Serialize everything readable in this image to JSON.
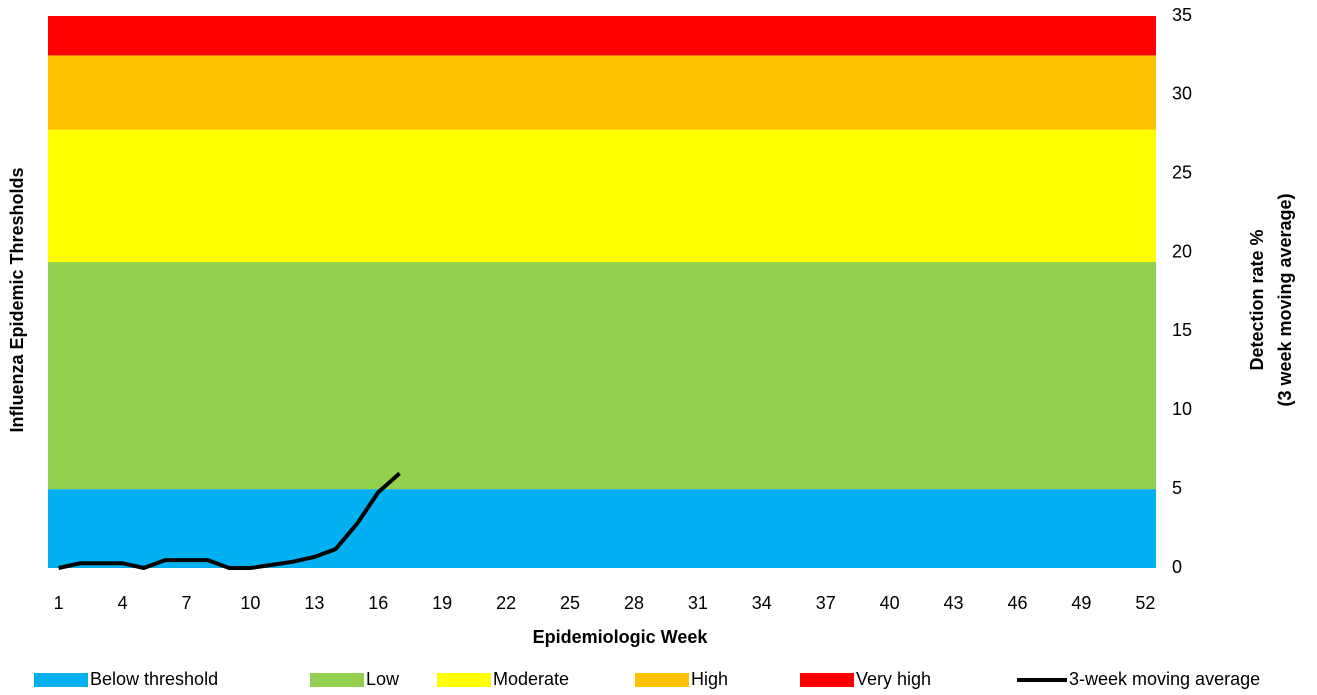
{
  "chart_data": {
    "type": "line",
    "x_label": "Epidemiologic Week",
    "y_label": "Influenza Epidemic Thresholds",
    "y2_label": [
      "Detection rate %",
      "(3 week moving average)"
    ],
    "x": [
      1,
      2,
      3,
      4,
      5,
      6,
      7,
      8,
      9,
      10,
      11,
      12,
      13,
      14,
      15,
      16,
      17,
      18,
      19,
      20,
      21,
      22,
      23,
      24,
      25,
      26,
      27,
      28,
      29,
      30,
      31,
      32,
      33,
      34,
      35,
      36,
      37,
      38,
      39,
      40,
      41,
      42,
      43,
      44,
      45,
      46,
      47,
      48,
      49,
      50,
      51,
      52
    ],
    "xlim": [
      0.5,
      52.5
    ],
    "xticks": [
      1,
      4,
      7,
      10,
      13,
      16,
      19,
      22,
      25,
      28,
      31,
      34,
      37,
      40,
      43,
      46,
      49,
      52
    ],
    "y2lim": [
      0,
      35
    ],
    "y2ticks": [
      0,
      5,
      10,
      15,
      20,
      25,
      30,
      35
    ],
    "bands": [
      {
        "name": "Below threshold",
        "color": "#00b0f0",
        "value": 5
      },
      {
        "name": "Low",
        "color": "#92d050",
        "value": 14.4
      },
      {
        "name": "Moderate",
        "color": "#ffff00",
        "value": 8.4
      },
      {
        "name": "High",
        "color": "#ffc000",
        "value": 4.7
      },
      {
        "name": "Very high",
        "color": "#ff0000",
        "value": 2.5
      }
    ],
    "series": [
      {
        "name": "3-week moving average",
        "color": "#000000",
        "axis": "y2",
        "values": [
          0,
          0.3,
          0.3,
          0.3,
          0,
          0.5,
          0.5,
          0.5,
          0,
          0,
          0.2,
          0.4,
          0.7,
          1.2,
          2.8,
          4.8,
          6.0,
          null,
          null,
          null,
          null,
          null,
          null,
          null,
          null,
          null,
          null,
          null,
          null,
          null,
          null,
          null,
          null,
          null,
          null,
          null,
          null,
          null,
          null,
          null,
          null,
          null,
          null,
          null,
          null,
          null,
          null,
          null,
          null,
          null,
          null,
          null
        ]
      }
    ]
  }
}
